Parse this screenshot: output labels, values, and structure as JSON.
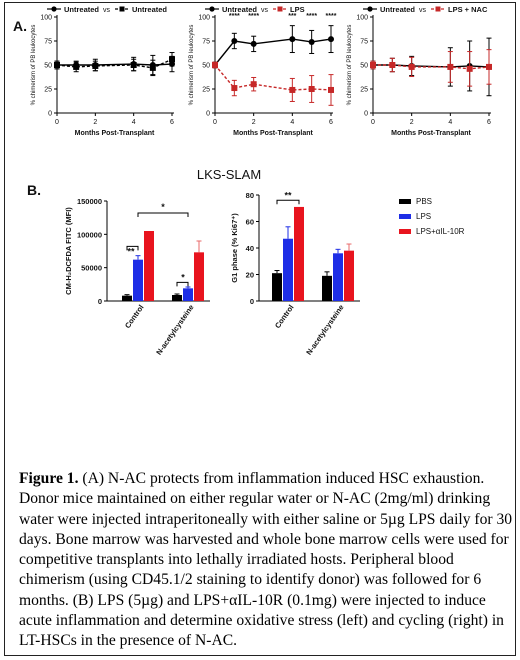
{
  "panel_a": {
    "label": "A.",
    "charts": [
      {
        "legend": [
          "Untreated",
          "vs",
          "Untreated"
        ],
        "ylabel": "% chimerism of PB leukocytes",
        "xlabel": "Months Post-Transplant",
        "yticks": [
          "0",
          "25",
          "50",
          "75",
          "100"
        ],
        "xticks": [
          "0",
          "2",
          "4",
          "6"
        ],
        "series": [
          {
            "color": "#000000",
            "marker": "circle",
            "x": [
              0,
              1,
              2,
              4,
              5,
              6
            ],
            "y": [
              50,
              50,
              50,
              51,
              50,
              51
            ],
            "err": [
              4,
              4,
              6,
              7,
              10,
              8
            ]
          },
          {
            "color": "#000000",
            "marker": "square",
            "x": [
              0,
              1,
              2,
              4,
              5,
              6
            ],
            "y": [
              50,
              48,
              49,
              50,
              47,
              56
            ],
            "err": [
              4,
              5,
              5,
              6,
              8,
              7
            ]
          }
        ],
        "stars": []
      },
      {
        "legend": [
          "Untreated",
          "vs",
          "LPS"
        ],
        "ylabel": "% chimerism of PB leukocytes",
        "xlabel": "Months Post-Transplant",
        "yticks": [
          "0",
          "25",
          "50",
          "75",
          "100"
        ],
        "xticks": [
          "0",
          "2",
          "4",
          "6"
        ],
        "series": [
          {
            "color": "#000000",
            "marker": "circle",
            "x": [
              0,
              1,
              2,
              4,
              5,
              6
            ],
            "y": [
              50,
              75,
              72,
              77,
              74,
              77
            ],
            "err": [
              3,
              8,
              8,
              14,
              12,
              14
            ]
          },
          {
            "color": "#c62828",
            "marker": "square",
            "x": [
              0,
              1,
              2,
              4,
              5,
              6
            ],
            "y": [
              50,
              26,
              30,
              24,
              25,
              24
            ],
            "err": [
              3,
              8,
              7,
              12,
              14,
              16
            ]
          }
        ],
        "stars": [
          {
            "x": 1,
            "text": "****"
          },
          {
            "x": 2,
            "text": "****"
          },
          {
            "x": 4,
            "text": "***"
          },
          {
            "x": 5,
            "text": "****"
          },
          {
            "x": 6,
            "text": "****"
          }
        ]
      },
      {
        "legend": [
          "Untreated",
          "vs",
          "LPS + NAC"
        ],
        "ylabel": "% chimerism of PB leukocytes",
        "xlabel": "Months Post-Transplant",
        "yticks": [
          "0",
          "25",
          "50",
          "75",
          "100"
        ],
        "xticks": [
          "0",
          "2",
          "4",
          "6"
        ],
        "series": [
          {
            "color": "#000000",
            "marker": "circle",
            "x": [
              0,
              1,
              2,
              4,
              5,
              6
            ],
            "y": [
              50,
              50,
              49,
              48,
              49,
              48
            ],
            "err": [
              4,
              7,
              10,
              20,
              26,
              30
            ]
          },
          {
            "color": "#c62828",
            "marker": "square",
            "x": [
              0,
              1,
              2,
              4,
              5,
              6
            ],
            "y": [
              50,
              50,
              48,
              48,
              46,
              48
            ],
            "err": [
              4,
              7,
              10,
              16,
              18,
              18
            ]
          }
        ],
        "stars": []
      }
    ]
  },
  "panel_b": {
    "label": "B.",
    "title": "LKS-SLAM",
    "legend": [
      {
        "label": "PBS",
        "color": "#000000"
      },
      {
        "label": "LPS",
        "color": "#1e2ee6"
      },
      {
        "label": "LPS+αIL-10R",
        "color": "#e8141e"
      }
    ],
    "categories": [
      "Control",
      "N-acetylcysteine"
    ],
    "charts": [
      {
        "ylabel": "CM-H₂DCFDA FITC (MFI)",
        "yticks": [
          "0",
          "50000",
          "100000",
          "150000"
        ],
        "ymax": 150000,
        "values": [
          [
            8000,
            62000,
            105000
          ],
          [
            9000,
            19000,
            73000
          ]
        ],
        "err": [
          [
            1500,
            6000,
            0
          ],
          [
            1500,
            2000,
            17000
          ]
        ],
        "annotations": [
          "**",
          "*",
          "*"
        ]
      },
      {
        "ylabel": "G1 phase (% Ki67⁺)",
        "yticks": [
          "0",
          "20",
          "40",
          "60",
          "80"
        ],
        "ymax": 80,
        "values": [
          [
            21,
            47,
            71
          ],
          [
            19,
            36,
            38
          ]
        ],
        "err": [
          [
            2,
            9,
            0
          ],
          [
            3,
            3,
            5
          ]
        ],
        "annotations": [
          "**"
        ]
      }
    ]
  },
  "caption": {
    "figure_label": "Figure 1.",
    "text": " (A) N-AC protects from inflammation induced HSC exhaustion. Donor mice maintained on either regular water or N-AC (2mg/ml) drinking water were injected intraperitoneally with either saline or 5µg LPS daily for 30 days. Bone marrow was harvested and whole bone marrow cells were used for competitive transplants into lethally irradiated hosts. Peripheral blood chimerism (using CD45.1/2 staining to identify donor) was followed for 6 months. (B) LPS (5µg) and LPS+αIL-10R (0.1mg) were injected to induce acute inflammation and determine oxidative stress (left) and cycling (right) in LT-HSCs in the presence of N-AC."
  }
}
